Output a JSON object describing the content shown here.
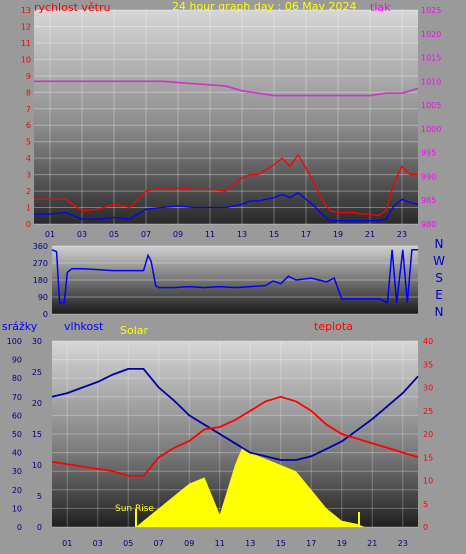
{
  "page": {
    "background": "#9a9a9a"
  },
  "wind_chart": {
    "type": "line",
    "title": "24 hour graph day : 06 May 2024",
    "left_axis_label": "rychlost větru",
    "right_axis_label": "tlak",
    "left_ylim": [
      0,
      13
    ],
    "right_ylim": [
      980,
      1025
    ],
    "left_ticks": [
      "0",
      "1",
      "2",
      "3",
      "4",
      "5",
      "6",
      "7",
      "8",
      "9",
      "10",
      "11",
      "12",
      "13"
    ],
    "right_ticks": [
      "980",
      "985",
      "990",
      "995",
      "1000",
      "1005",
      "1010",
      "1015",
      "1020",
      "1025"
    ],
    "x_ticks": [
      "01",
      "03",
      "05",
      "07",
      "09",
      "11",
      "13",
      "15",
      "17",
      "19",
      "21",
      "23"
    ],
    "xlim": [
      0,
      24
    ],
    "colors": {
      "gust": "#ff0000",
      "speed": "#0000ff",
      "pressure": "#cc33cc",
      "title": "#ffff00",
      "left_label": "#ff0000",
      "right_label": "#ff00ff"
    },
    "series": [
      {
        "key": "gust",
        "x": [
          0,
          1,
          2,
          3,
          4,
          5,
          6,
          6.5,
          7,
          8,
          9,
          10,
          11,
          12,
          13,
          13.5,
          14,
          15,
          15.5,
          16,
          16.5,
          17,
          17.5,
          18,
          18.5,
          19,
          20,
          20.5,
          21,
          21.5,
          22,
          22.5,
          23,
          23.5,
          24
        ],
        "values": [
          1.5,
          1.5,
          1.5,
          0.8,
          0.9,
          1.2,
          1.0,
          1.5,
          2.0,
          2.2,
          2.2,
          2.1,
          2.1,
          2.0,
          2.8,
          3.0,
          3.0,
          3.6,
          4.0,
          3.5,
          4.2,
          3.4,
          2.5,
          1.5,
          0.8,
          0.7,
          0.7,
          0.6,
          0.6,
          0.5,
          0.8,
          2.5,
          3.5,
          3.0,
          3.0
        ]
      },
      {
        "key": "speed",
        "x": [
          0,
          1,
          2,
          3,
          4,
          5,
          6,
          6.5,
          7,
          8,
          9,
          10,
          11,
          12,
          13,
          13.5,
          14,
          15,
          15.5,
          16,
          16.5,
          17,
          17.5,
          18,
          18.5,
          19,
          20,
          20.5,
          21,
          21.5,
          22,
          22.5,
          23,
          23.5,
          24
        ],
        "values": [
          0.6,
          0.6,
          0.7,
          0.3,
          0.3,
          0.4,
          0.3,
          0.6,
          0.9,
          1.0,
          1.1,
          1.0,
          1.0,
          1.0,
          1.2,
          1.4,
          1.4,
          1.6,
          1.8,
          1.6,
          1.9,
          1.5,
          1.1,
          0.6,
          0.2,
          0.2,
          0.2,
          0.2,
          0.2,
          0.2,
          0.3,
          1.1,
          1.5,
          1.3,
          1.2
        ]
      },
      {
        "key": "pressure",
        "x": [
          0,
          2,
          4,
          6,
          8,
          10,
          12,
          13,
          14,
          15,
          16,
          17,
          18,
          19,
          20,
          21,
          22,
          23,
          24
        ],
        "values": [
          1010,
          1010,
          1010,
          1010,
          1010,
          1009.5,
          1009,
          1008,
          1007.5,
          1007,
          1007,
          1007,
          1007,
          1007,
          1007,
          1007,
          1007.5,
          1007.5,
          1008.5
        ]
      }
    ]
  },
  "direction_chart": {
    "type": "line",
    "ylim": [
      0,
      360
    ],
    "y_ticks": [
      "0",
      "90",
      "180",
      "270",
      "360"
    ],
    "compass": [
      "N",
      "W",
      "S",
      "E",
      "N"
    ],
    "xlim": [
      0,
      24
    ],
    "color": "#0000ff",
    "series": [
      {
        "key": "direction",
        "x": [
          0,
          0.3,
          0.5,
          0.8,
          1,
          1.3,
          2,
          3,
          4,
          5,
          6,
          6.3,
          6.5,
          6.8,
          7,
          8,
          9,
          10,
          11,
          12,
          13,
          14,
          14.5,
          15,
          15.5,
          16,
          17,
          18,
          18.5,
          19,
          20,
          21,
          21.5,
          22,
          22.3,
          22.6,
          23,
          23.3,
          23.6,
          24
        ],
        "values": [
          340,
          330,
          60,
          60,
          220,
          240,
          240,
          235,
          230,
          230,
          230,
          310,
          280,
          150,
          140,
          140,
          145,
          140,
          145,
          140,
          145,
          150,
          175,
          160,
          200,
          180,
          190,
          170,
          190,
          80,
          80,
          80,
          80,
          60,
          340,
          60,
          340,
          60,
          340,
          340
        ]
      }
    ]
  },
  "climate_chart": {
    "type": "area",
    "labels": {
      "rain": "srážky",
      "humidity": "vlhkost",
      "solar": "Solar",
      "temperature": "teplota",
      "sunrise": "Sun Rise"
    },
    "rain_ylim": [
      0,
      100
    ],
    "rain_ticks": [
      "0",
      "10",
      "20",
      "30",
      "40",
      "50",
      "60",
      "70",
      "80",
      "90",
      "100"
    ],
    "humidity_ylim": [
      0,
      30
    ],
    "humidity_ticks": [
      "0",
      "5",
      "10",
      "15",
      "20",
      "25",
      "30"
    ],
    "temperature_ylim": [
      0,
      40
    ],
    "temperature_ticks": [
      "0",
      "5",
      "10",
      "15",
      "20",
      "25",
      "30",
      "35",
      "40"
    ],
    "x_ticks": [
      "01",
      "03",
      "05",
      "07",
      "09",
      "11",
      "13",
      "15",
      "17",
      "19",
      "21",
      "23"
    ],
    "xlim": [
      0,
      24
    ],
    "colors": {
      "rain_label": "#0000ff",
      "humidity_label": "#0000ff",
      "solar": "#ffff00",
      "temperature": "#ff0000",
      "humidity": "#0000aa"
    },
    "series": [
      {
        "key": "humidity",
        "axis": "rain",
        "x": [
          0,
          1,
          2,
          3,
          4,
          5,
          6,
          7,
          8,
          9,
          10,
          11,
          12,
          13,
          14,
          15,
          16,
          17,
          18,
          19,
          20,
          21,
          22,
          23,
          24
        ],
        "values": [
          70,
          72,
          75,
          78,
          82,
          85,
          85,
          75,
          68,
          60,
          55,
          50,
          45,
          40,
          38,
          36,
          36,
          38,
          42,
          46,
          52,
          58,
          65,
          72,
          81
        ]
      },
      {
        "key": "temperature",
        "axis": "temperature",
        "x": [
          0,
          1,
          2,
          3,
          4,
          5,
          6,
          7,
          8,
          9,
          10,
          11,
          12,
          13,
          14,
          15,
          16,
          17,
          18,
          19,
          20,
          21,
          22,
          23,
          24
        ],
        "values": [
          14,
          13.5,
          13,
          12.5,
          12,
          11,
          11,
          15,
          17,
          18.5,
          21,
          21.5,
          23,
          25,
          27,
          28,
          27,
          25,
          22,
          20,
          19,
          18,
          17,
          16,
          15
        ]
      },
      {
        "key": "solar",
        "axis": "humidity",
        "x": [
          5.5,
          6,
          7,
          8,
          9,
          10,
          10.5,
          11,
          11.5,
          12,
          12.5,
          13,
          14,
          15,
          16,
          17,
          18,
          19,
          20,
          20.5
        ],
        "values": [
          0,
          1,
          3,
          5,
          7,
          8,
          5,
          2,
          6,
          10,
          13,
          12,
          11,
          10,
          9,
          6,
          3,
          1,
          0.5,
          0
        ]
      }
    ]
  }
}
